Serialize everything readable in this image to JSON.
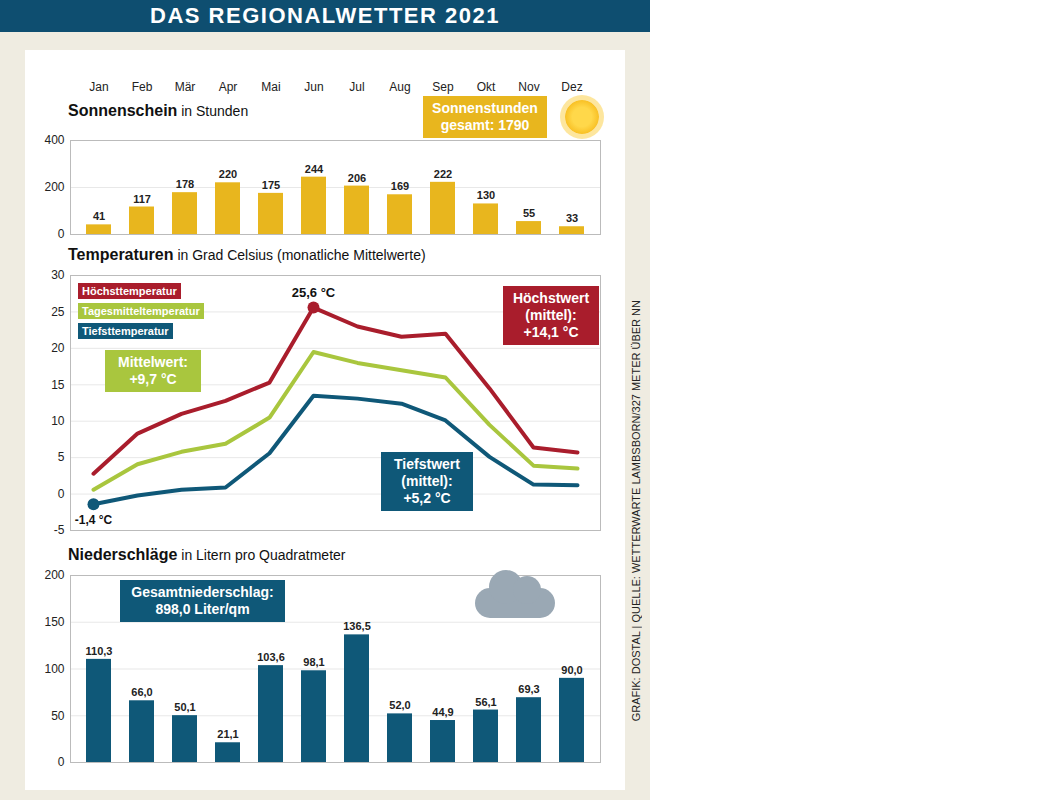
{
  "title": "DAS REGIONALWETTER 2021",
  "caption": "GRAFIK: DOSTAL | QUELLE: WETTERWARTE LAMBSBORN/327 METER ÜBER NN",
  "chart_data": [
    {
      "type": "bar",
      "title": "Sonnenschein",
      "subtitle": "in Stunden",
      "categories": [
        "Jan",
        "Feb",
        "Mär",
        "Apr",
        "Mai",
        "Jun",
        "Jul",
        "Aug",
        "Sep",
        "Okt",
        "Nov",
        "Dez"
      ],
      "values": [
        41,
        117,
        178,
        220,
        175,
        244,
        206,
        169,
        222,
        130,
        55,
        33
      ],
      "color": "#e8b61e",
      "ylim": [
        0,
        400
      ],
      "yticks": [
        0,
        200,
        400
      ],
      "grid": true,
      "data_labels": true,
      "annotations": [
        {
          "text": "Sonnenstunden\ngesamt: 1790",
          "color": "#e8b61e"
        }
      ]
    },
    {
      "type": "line",
      "title": "Temperaturen",
      "subtitle": "in Grad Celsius (monatliche Mittelwerte)",
      "categories": [
        "Jan",
        "Feb",
        "Mär",
        "Apr",
        "Mai",
        "Jun",
        "Jul",
        "Aug",
        "Sep",
        "Okt",
        "Nov",
        "Dez"
      ],
      "series": [
        {
          "name": "Höchsttemperatur",
          "color": "#a91d2c",
          "values": [
            2.8,
            8.3,
            11.0,
            12.8,
            15.3,
            25.6,
            23.0,
            21.6,
            22.0,
            14.5,
            6.4,
            5.7
          ]
        },
        {
          "name": "Tagesmitteltemperatur",
          "color": "#a9c63e",
          "values": [
            0.6,
            4.1,
            5.8,
            6.9,
            10.5,
            19.5,
            18.0,
            17.0,
            16.0,
            9.5,
            3.9,
            3.5
          ]
        },
        {
          "name": "Tiefsttemperatur",
          "color": "#0f5878",
          "values": [
            -1.4,
            -0.2,
            0.6,
            0.9,
            5.6,
            13.5,
            13.1,
            12.4,
            10.1,
            5.1,
            1.3,
            1.2
          ]
        }
      ],
      "ylim": [
        -5,
        30
      ],
      "yticks": [
        -5,
        0,
        5,
        10,
        15,
        20,
        25,
        30
      ],
      "grid": true,
      "legend": "top-left",
      "tick_labels": "y",
      "point_labels": [
        {
          "text": "25,6 °C",
          "x": "Jun",
          "y": 25.6
        },
        {
          "text": "-1,4 °C",
          "x": "Jan",
          "y": -1.4
        }
      ],
      "annotations": [
        {
          "text": "Mittelwert:\n+9,7 °C",
          "color": "#a9c63e"
        },
        {
          "text": "Höchstwert\n(mittel):\n+14,1 °C",
          "color": "#a91d2c"
        },
        {
          "text": "Tiefstwert\n(mittel):\n+5,2 °C",
          "color": "#0f5878"
        }
      ]
    },
    {
      "type": "bar",
      "title": "Niederschläge",
      "subtitle": "in Litern pro Quadratmeter",
      "categories": [
        "Jan",
        "Feb",
        "Mär",
        "Apr",
        "Mai",
        "Jun",
        "Jul",
        "Aug",
        "Sep",
        "Okt",
        "Nov",
        "Dez"
      ],
      "values": [
        110.3,
        66.0,
        50.1,
        21.1,
        103.6,
        98.1,
        136.5,
        52.0,
        44.9,
        56.1,
        69.3,
        90.0
      ],
      "value_labels": [
        "110,3",
        "66,0",
        "50,1",
        "21,1",
        "103,6",
        "98,1",
        "136,5",
        "52,0",
        "44,9",
        "56,1",
        "69,3",
        "90,0"
      ],
      "color": "#0f5878",
      "ylim": [
        0,
        200
      ],
      "yticks": [
        0,
        50,
        100,
        150,
        200
      ],
      "grid": true,
      "data_labels": true,
      "tick_labels": "y",
      "annotations": [
        {
          "text": "Gesamtniederschlag:\n898,0 Liter/qm",
          "color": "#0f5878"
        }
      ]
    }
  ]
}
